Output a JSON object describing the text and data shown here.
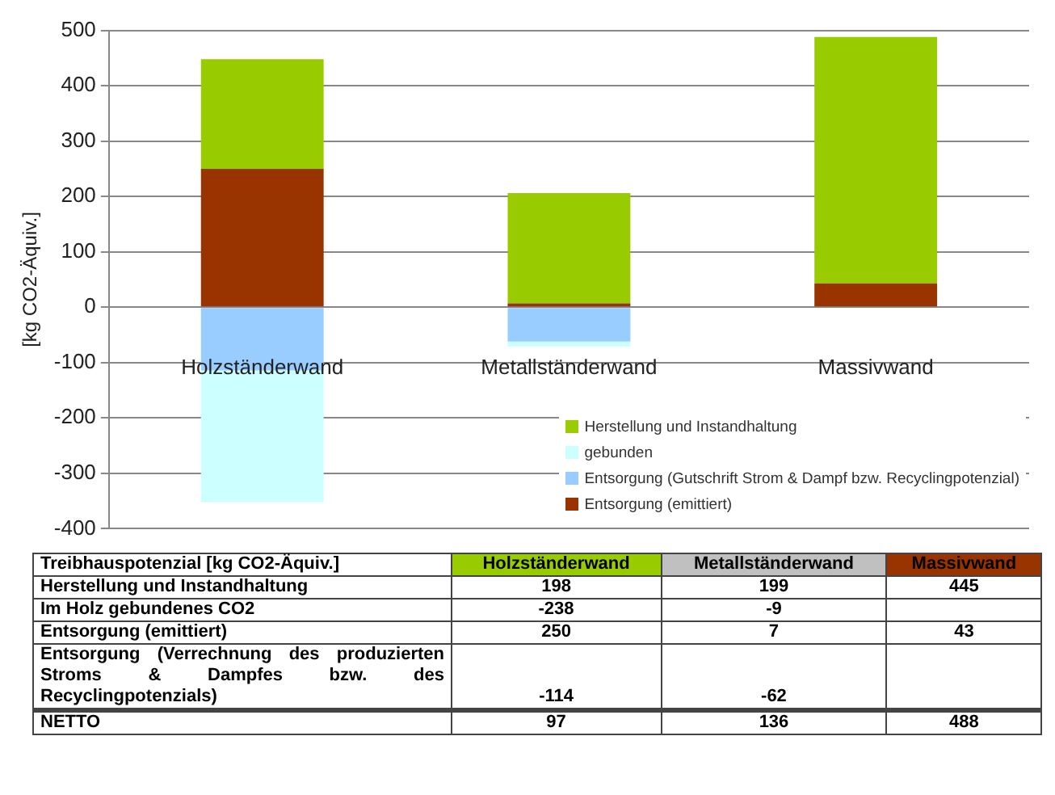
{
  "chart_data": [
    {
      "type": "bar",
      "stacked": true,
      "ylabel": "[kg CO2-Äquiv.]",
      "categories": [
        "Holzständerwand",
        "Metallständerwand",
        "Massivwand"
      ],
      "series": [
        {
          "name": "Entsorgung (emittiert)",
          "color": "#993300",
          "values": [
            250,
            7,
            43
          ]
        },
        {
          "name": "Entsorgung (Gutschrift Strom & Dampf bzw. Recyclingpotenzial)",
          "color": "#99ccff",
          "values": [
            -114,
            -62,
            null
          ]
        },
        {
          "name": "gebunden",
          "color": "#ccffff",
          "values": [
            -238,
            -9,
            null
          ]
        },
        {
          "name": "Herstellung und Instandhaltung",
          "color": "#99cc00",
          "values": [
            198,
            199,
            445
          ]
        }
      ],
      "ylim": [
        -400,
        500
      ],
      "yticks": [
        -400,
        -300,
        -200,
        -100,
        0,
        100,
        200,
        300,
        400,
        500
      ],
      "grid": "y",
      "legend": "bottom right"
    },
    {
      "type": "other",
      "title": "Treibhauspotenzial [kg CO2-Äquiv.]",
      "categories": [
        "Holzständerwand",
        "Metallständerwand",
        "Massivwand"
      ],
      "y_categories": [
        "Herstellung und Instandhaltung",
        "Im Holz gebundenes CO2",
        "Entsorgung (emittiert)",
        "Entsorgung (Verrechnung des produzierten Stroms & Dampfes bzw. des Recyclingpotenzials)",
        "NETTO"
      ],
      "cell_labels": [
        [
          "198",
          "199",
          "445"
        ],
        [
          "-238",
          "-9",
          null
        ],
        [
          "250",
          "7",
          "43"
        ],
        [
          "-114",
          "-62",
          null
        ],
        [
          "97",
          "136",
          "488"
        ]
      ]
    }
  ]
}
